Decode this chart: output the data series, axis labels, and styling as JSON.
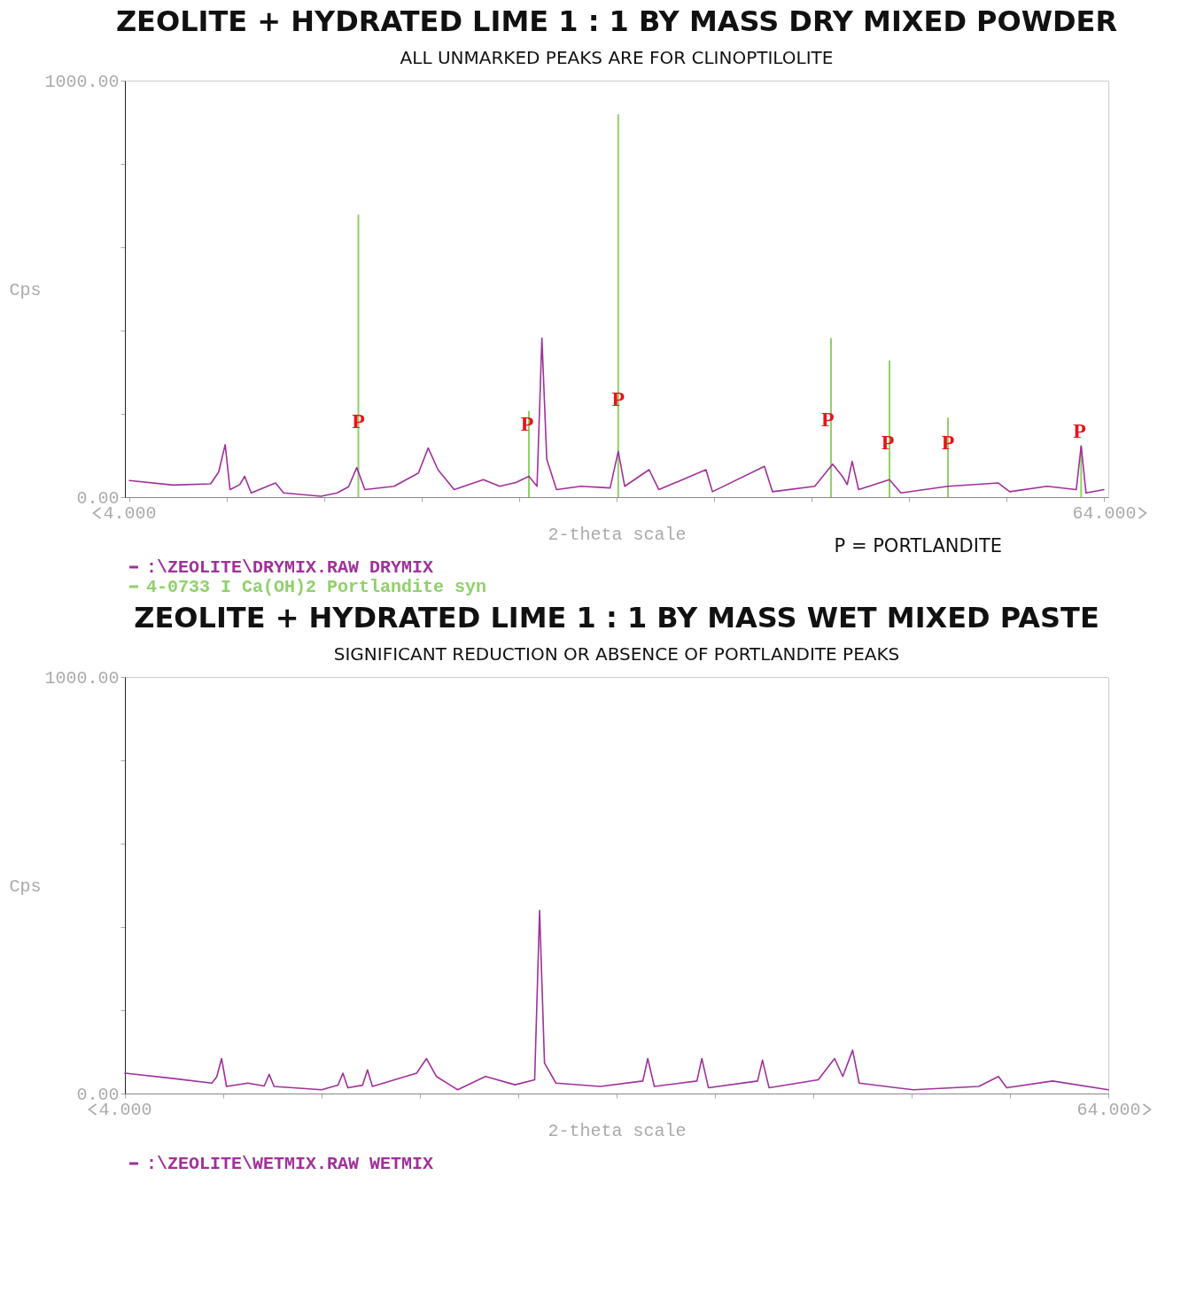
{
  "chart_data": [
    {
      "type": "line",
      "title": "ZEOLITE + HYDRATED LIME 1 : 1 BY MASS DRY MIXED POWDER",
      "subtitle": "ALL UNMARKED PEAKS ARE FOR CLINOPTILOLITE",
      "xlabel": "2-theta scale",
      "ylabel": "Cps",
      "xlim": [
        4,
        64
      ],
      "ylim": [
        0,
        1000
      ],
      "xticks": [
        {
          "value": 4,
          "label": "4.000"
        },
        {
          "value": 10,
          "label": null
        },
        {
          "value": 16,
          "label": null
        },
        {
          "value": 22,
          "label": null
        },
        {
          "value": 28,
          "label": null
        },
        {
          "value": 34,
          "label": null
        },
        {
          "value": 40,
          "label": null
        },
        {
          "value": 46,
          "label": null
        },
        {
          "value": 52,
          "label": null
        },
        {
          "value": 58,
          "label": null
        },
        {
          "value": 64,
          "label": "64.000"
        }
      ],
      "yticks": [
        {
          "value": 0,
          "label": "0.00"
        },
        {
          "value": 200,
          "label": null
        },
        {
          "value": 400,
          "label": null
        },
        {
          "value": 600,
          "label": null
        },
        {
          "value": 800,
          "label": null
        },
        {
          "value": 1000,
          "label": "1000.00"
        }
      ],
      "legend": "bottom left",
      "series": [
        {
          "name": ":\\ZEOLITE\\DRYMIX.RAW DRYMIX",
          "color": "#a0309a",
          "x": [
            4,
            6.7,
            9,
            9.5,
            9.9,
            10.2,
            10.8,
            11.1,
            11.5,
            13,
            13.5,
            15.8,
            16.8,
            17.5,
            18,
            18.5,
            20.3,
            21.8,
            22.4,
            23,
            24,
            25.8,
            26.8,
            27.8,
            28.6,
            29.1,
            29.4,
            29.7,
            30.3,
            31.8,
            33.6,
            34.1,
            34.5,
            36,
            36.6,
            39.5,
            39.9,
            43.1,
            43.6,
            46.2,
            47.3,
            47.9,
            48.2,
            48.5,
            48.9,
            50.8,
            51.5,
            54.4,
            57.5,
            58.2,
            60.5,
            62.3,
            62.6,
            62.9,
            64
          ],
          "values": [
            40,
            29,
            32,
            60,
            126,
            18,
            30,
            50,
            10,
            34,
            10,
            2,
            10,
            25,
            71,
            18,
            26,
            58,
            118,
            66,
            18,
            42,
            26,
            35,
            50,
            26,
            382,
            91,
            18,
            26,
            22,
            110,
            26,
            66,
            18,
            66,
            13,
            74,
            13,
            26,
            79,
            50,
            30,
            86,
            18,
            42,
            10,
            26,
            34,
            13,
            26,
            18,
            123,
            10,
            18
          ]
        },
        {
          "name": "4-0733 I Ca(OH)2 Portlandite syn",
          "type": "bar",
          "color": "#8fd16a",
          "x": [
            18.1,
            28.6,
            34.1,
            47.2,
            50.8,
            54.4,
            62.6
          ],
          "values": [
            678,
            207,
            919,
            382,
            328,
            191,
            123
          ]
        }
      ],
      "annotations": [
        {
          "text": "P",
          "x": 18.1,
          "y": 155
        },
        {
          "text": "P",
          "x": 28.5,
          "y": 150
        },
        {
          "text": "P",
          "x": 34.1,
          "y": 209
        },
        {
          "text": "P",
          "x": 47,
          "y": 159
        },
        {
          "text": "P",
          "x": 50.7,
          "y": 105
        },
        {
          "text": "P",
          "x": 54.4,
          "y": 105
        },
        {
          "text": "P",
          "x": 62.5,
          "y": 131
        },
        "P = PORTLANDITE"
      ]
    },
    {
      "type": "line",
      "title": "ZEOLITE + HYDRATED LIME 1 : 1 BY MASS WET MIXED PASTE",
      "subtitle": "SIGNIFICANT REDUCTION OR ABSENCE OF PORTLANDITE PEAKS",
      "xlabel": "2-theta scale",
      "ylabel": "Cps",
      "xlim": [
        4,
        64
      ],
      "ylim": [
        0,
        1000
      ],
      "xticks": [
        {
          "value": 4,
          "label": "4.000"
        },
        {
          "value": 10,
          "label": null
        },
        {
          "value": 16,
          "label": null
        },
        {
          "value": 22,
          "label": null
        },
        {
          "value": 28,
          "label": null
        },
        {
          "value": 34,
          "label": null
        },
        {
          "value": 40,
          "label": null
        },
        {
          "value": 46,
          "label": null
        },
        {
          "value": 52,
          "label": null
        },
        {
          "value": 58,
          "label": null
        },
        {
          "value": 64,
          "label": "64.000"
        }
      ],
      "yticks": [
        {
          "value": 0,
          "label": "0.00"
        },
        {
          "value": 200,
          "label": null
        },
        {
          "value": 400,
          "label": null
        },
        {
          "value": 600,
          "label": null
        },
        {
          "value": 800,
          "label": null
        },
        {
          "value": 1000,
          "label": "1000.00"
        }
      ],
      "legend": "bottom left",
      "series": [
        {
          "name": ":\\ZEOLITE\\WETMIX.RAW WETMIX",
          "color": "#a0309a",
          "x": [
            4,
            7,
            9.3,
            9.6,
            9.9,
            10.2,
            11.5,
            12.5,
            12.8,
            13.1,
            16,
            17,
            17.3,
            17.6,
            18.5,
            18.8,
            19.1,
            21.8,
            22.4,
            23,
            24.3,
            26,
            27.8,
            29,
            29.3,
            29.6,
            30.3,
            33,
            35.6,
            35.9,
            36.3,
            38.9,
            39.2,
            39.6,
            42.6,
            42.9,
            43.3,
            46.3,
            47.3,
            47.8,
            48.4,
            48.8,
            52.1,
            56.1,
            57.3,
            57.8,
            60.6,
            64
          ],
          "values": [
            49,
            36,
            25,
            40,
            84,
            17,
            25,
            18,
            46,
            17,
            9,
            20,
            49,
            14,
            20,
            57,
            17,
            49,
            84,
            41,
            9,
            41,
            21,
            33,
            440,
            73,
            25,
            17,
            30,
            84,
            17,
            30,
            84,
            14,
            30,
            80,
            14,
            33,
            84,
            41,
            104,
            25,
            9,
            17,
            41,
            14,
            30,
            9
          ]
        }
      ]
    }
  ]
}
